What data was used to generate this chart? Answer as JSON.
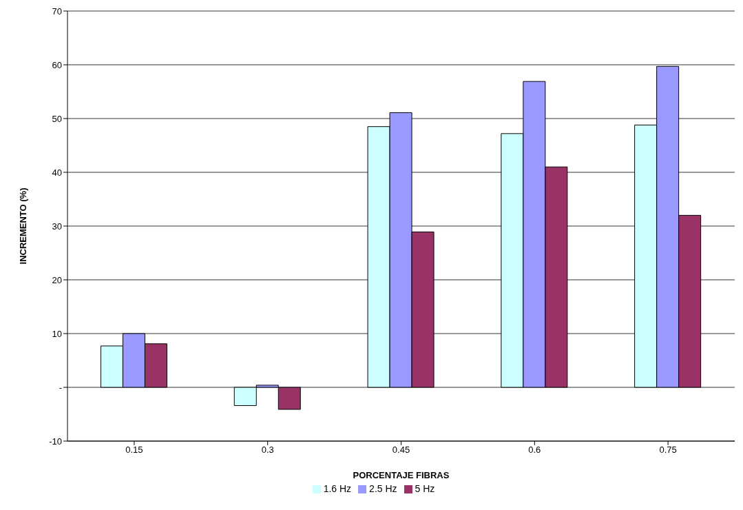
{
  "chart_data": {
    "type": "bar",
    "xlabel": "PORCENTAJE FIBRAS",
    "ylabel": "INCREMENTO (%)",
    "categories": [
      "0.15",
      "0.3",
      "0.45",
      "0.6",
      "0.75"
    ],
    "series": [
      {
        "name": "1.6 Hz",
        "color": "#ccffff",
        "values": [
          7.7,
          -3.4,
          48.5,
          47.2,
          48.8
        ]
      },
      {
        "name": "2.5 Hz",
        "color": "#9999ff",
        "values": [
          10.0,
          0.4,
          51.1,
          56.9,
          59.7
        ]
      },
      {
        "name": "5 Hz",
        "color": "#993366",
        "values": [
          8.1,
          -4.1,
          28.9,
          41.0,
          32.0
        ]
      }
    ],
    "ylim": [
      -10,
      70
    ],
    "yticks": [
      -10,
      {
        "value": 0,
        "label": "-"
      },
      10,
      20,
      30,
      40,
      50,
      60,
      70
    ],
    "grid": "y",
    "legend": "bottom"
  }
}
